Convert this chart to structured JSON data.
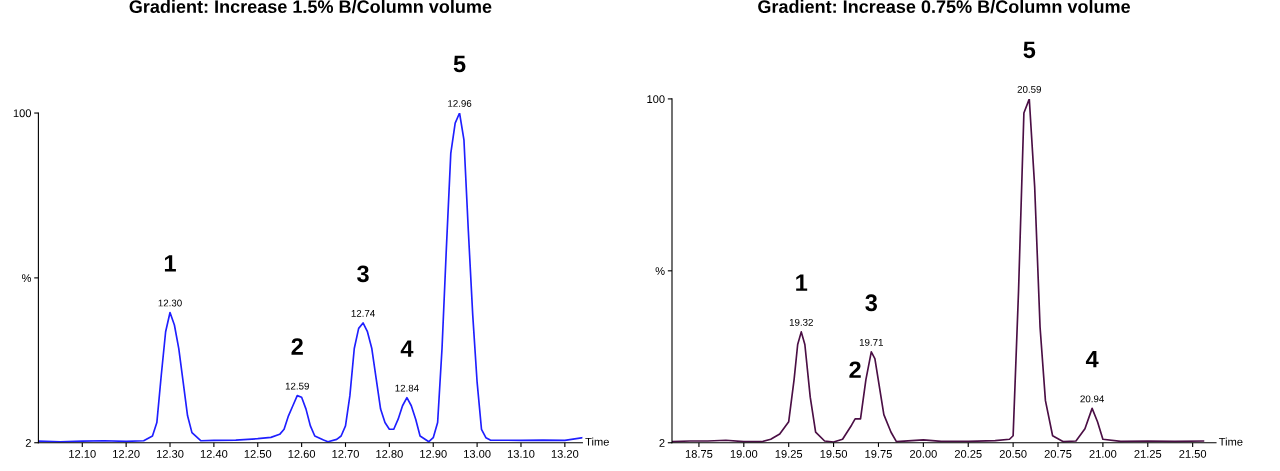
{
  "chart_data": [
    {
      "type": "line",
      "title": "Gradient: Increase 1.5% B/Column volume",
      "xlabel": "Time",
      "xlim": [
        12.0,
        13.24
      ],
      "ylim": [
        2,
        100
      ],
      "xticks": [
        {
          "value": 12.1,
          "label": "12.10"
        },
        {
          "value": 12.2,
          "label": "12.20"
        },
        {
          "value": 12.3,
          "label": "12.30"
        },
        {
          "value": 12.4,
          "label": "12.40"
        },
        {
          "value": 12.5,
          "label": "12.50"
        },
        {
          "value": 12.6,
          "label": "12.60"
        },
        {
          "value": 12.7,
          "label": "12.70"
        },
        {
          "value": 12.8,
          "label": "12.80"
        },
        {
          "value": 12.9,
          "label": "12.90"
        },
        {
          "value": 13.0,
          "label": "13.00"
        },
        {
          "value": 13.1,
          "label": "13.10"
        },
        {
          "value": 13.2,
          "label": "13.20"
        }
      ],
      "yticks": [
        2,
        {
          "value": 51,
          "label": "%"
        },
        100
      ],
      "grid": false,
      "legend": false,
      "marker": "none",
      "line_style": "solid",
      "series": [
        {
          "color": "#1f1fff",
          "x": [
            12.0,
            12.05,
            12.1,
            12.15,
            12.2,
            12.24,
            12.26,
            12.27,
            12.28,
            12.29,
            12.3,
            12.31,
            12.32,
            12.33,
            12.34,
            12.35,
            12.37,
            12.4,
            12.45,
            12.5,
            12.53,
            12.55,
            12.56,
            12.57,
            12.58,
            12.59,
            12.6,
            12.61,
            12.62,
            12.63,
            12.65,
            12.66,
            12.68,
            12.69,
            12.7,
            12.71,
            12.72,
            12.73,
            12.74,
            12.75,
            12.76,
            12.77,
            12.78,
            12.79,
            12.8,
            12.81,
            12.82,
            12.83,
            12.84,
            12.85,
            12.86,
            12.87,
            12.89,
            12.9,
            12.91,
            12.92,
            12.93,
            12.94,
            12.95,
            12.96,
            12.97,
            12.98,
            12.99,
            13.0,
            13.01,
            13.02,
            13.03,
            13.1,
            13.15,
            13.2,
            13.24
          ],
          "values": [
            2.5,
            2.3,
            2.5,
            2.6,
            2.4,
            2.6,
            4,
            8,
            22,
            35,
            40.7,
            37,
            30,
            20,
            10,
            5,
            2.6,
            2.7,
            2.8,
            3.2,
            3.6,
            4.5,
            6,
            10,
            13,
            16,
            15.5,
            12,
            7,
            4,
            2.8,
            2.3,
            3,
            4,
            7,
            16,
            30,
            36,
            37.6,
            35,
            30,
            21,
            12,
            8,
            6,
            6,
            9,
            13,
            15.4,
            13,
            9,
            4,
            2.3,
            3.5,
            8,
            30,
            60,
            88,
            97,
            100,
            92,
            65,
            40,
            20,
            6,
            3.5,
            2.8,
            2.7,
            2.8,
            2.7,
            3.5
          ]
        }
      ],
      "annotations": [
        {
          "text": "12.30",
          "x": 12.3,
          "y": 40.7
        },
        {
          "text": "12.59",
          "x": 12.59,
          "y": 16
        },
        {
          "text": "12.74",
          "x": 12.74,
          "y": 37.6
        },
        {
          "text": "12.84",
          "x": 12.84,
          "y": 15.4
        },
        {
          "text": "12.96",
          "x": 12.96,
          "y": 100
        },
        {
          "text": "1",
          "x": 12.3,
          "y": 40.7
        },
        {
          "text": "2",
          "x": 12.59,
          "y": 16
        },
        {
          "text": "3",
          "x": 12.74,
          "y": 37.6
        },
        {
          "text": "4",
          "x": 12.84,
          "y": 15.4
        },
        {
          "text": "5",
          "x": 12.96,
          "y": 100
        }
      ]
    },
    {
      "type": "line",
      "title": "Gradient: Increase 0.75% B/Column volume",
      "xlabel": "Time",
      "xlim": [
        18.6,
        21.63
      ],
      "ylim": [
        2,
        100
      ],
      "xticks": [
        {
          "value": 18.75,
          "label": "18.75"
        },
        {
          "value": 19.0,
          "label": "19.00"
        },
        {
          "value": 19.25,
          "label": "19.25"
        },
        {
          "value": 19.5,
          "label": "19.50"
        },
        {
          "value": 19.75,
          "label": "19.75"
        },
        {
          "value": 20.0,
          "label": "20.00"
        },
        {
          "value": 20.25,
          "label": "20.25"
        },
        {
          "value": 20.5,
          "label": "20.50"
        },
        {
          "value": 20.75,
          "label": "20.75"
        },
        {
          "value": 21.0,
          "label": "21.00"
        },
        {
          "value": 21.25,
          "label": "21.25"
        },
        {
          "value": 21.5,
          "label": "21.50"
        }
      ],
      "yticks": [
        2,
        {
          "value": 51,
          "label": "%"
        },
        100
      ],
      "grid": false,
      "legend": false,
      "marker": "none",
      "line_style": "solid",
      "series": [
        {
          "color": "#4b0f45",
          "x": [
            18.6,
            18.7,
            18.8,
            18.9,
            19.0,
            19.1,
            19.15,
            19.2,
            19.25,
            19.28,
            19.3,
            19.32,
            19.34,
            19.37,
            19.4,
            19.45,
            19.5,
            19.55,
            19.6,
            19.62,
            19.65,
            19.68,
            19.71,
            19.73,
            19.78,
            19.82,
            19.85,
            20.0,
            20.1,
            20.25,
            20.4,
            20.48,
            20.5,
            20.53,
            20.56,
            20.59,
            20.62,
            20.65,
            20.68,
            20.72,
            20.78,
            20.85,
            20.9,
            20.94,
            20.97,
            21.0,
            21.1,
            21.25,
            21.4,
            21.56
          ],
          "values": [
            2.3,
            2.5,
            2.5,
            2.7,
            2.3,
            2.3,
            3,
            4.5,
            8,
            20,
            30,
            33.6,
            30,
            15,
            5,
            2.5,
            2.2,
            3,
            7,
            8.8,
            8.8,
            20,
            27.9,
            26,
            10,
            5,
            2.3,
            2.8,
            2.4,
            2.4,
            2.6,
            3,
            4,
            45,
            96,
            100,
            75,
            35,
            14,
            4,
            2.3,
            2.5,
            6,
            11.8,
            8,
            3,
            2.4,
            2.5,
            2.4,
            2.5
          ]
        }
      ],
      "annotations": [
        {
          "text": "19.32",
          "x": 19.32,
          "y": 33.6
        },
        {
          "text": "19.71",
          "x": 19.71,
          "y": 27.9
        },
        {
          "text": "20.59",
          "x": 20.59,
          "y": 100
        },
        {
          "text": "20.94",
          "x": 20.94,
          "y": 11.8
        },
        {
          "text": "1",
          "x": 19.32,
          "y": 33.6
        },
        {
          "text": "2",
          "x": 19.62,
          "y": 8.8
        },
        {
          "text": "3",
          "x": 19.71,
          "y": 27.9
        },
        {
          "text": "4",
          "x": 20.94,
          "y": 11.8
        },
        {
          "text": "5",
          "x": 20.59,
          "y": 100
        }
      ]
    }
  ]
}
